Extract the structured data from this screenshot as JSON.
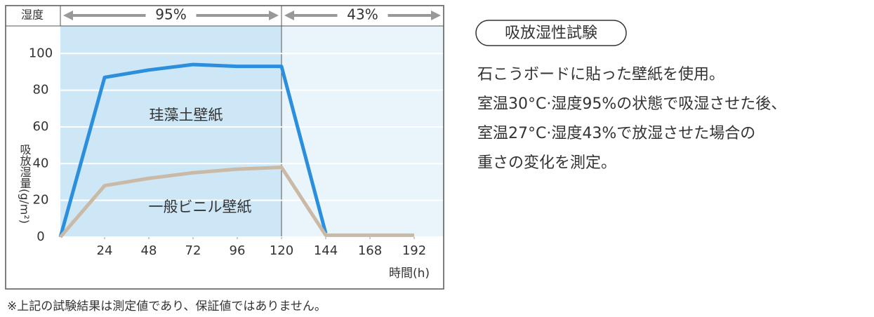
{
  "chart_data": {
    "type": "line",
    "header_label": "湿度",
    "phases": [
      {
        "label": "95%",
        "color": "#cde7f6"
      },
      {
        "label": "43%",
        "color": "#eaf5fb"
      }
    ],
    "phase_split": 120,
    "x": [
      0,
      24,
      48,
      72,
      96,
      120,
      144,
      168,
      192
    ],
    "series": [
      {
        "name": "珪藻土壁紙",
        "color": "#2b8fdd",
        "values": [
          0,
          87,
          91,
          94,
          93,
          93,
          2,
          null,
          null
        ]
      },
      {
        "name": "一般ビニル壁紙",
        "color": "#c9b9a5",
        "values": [
          0,
          28,
          32,
          35,
          37,
          38,
          1,
          1,
          1
        ]
      }
    ],
    "xlim": [
      0,
      208
    ],
    "xticks": [
      24,
      48,
      72,
      96,
      120,
      144,
      168,
      192
    ],
    "ylim": [
      0,
      115
    ],
    "yticks": [
      0,
      20,
      40,
      60,
      80,
      100
    ],
    "grid": true,
    "y_label": "吸放湿量(g/m²)",
    "x_label": "時間(h)",
    "footnote": "※上記の試験結果は測定値であり、保証値ではありません。"
  },
  "description": {
    "title": "吸放湿性試験",
    "lines": [
      "石こうボードに貼った壁紙を使用。",
      "室温30°C·湿度95%の状態で吸湿させた後、",
      "室温27°C·湿度43%で放湿させた場合の",
      "重さの変化を測定。"
    ]
  }
}
